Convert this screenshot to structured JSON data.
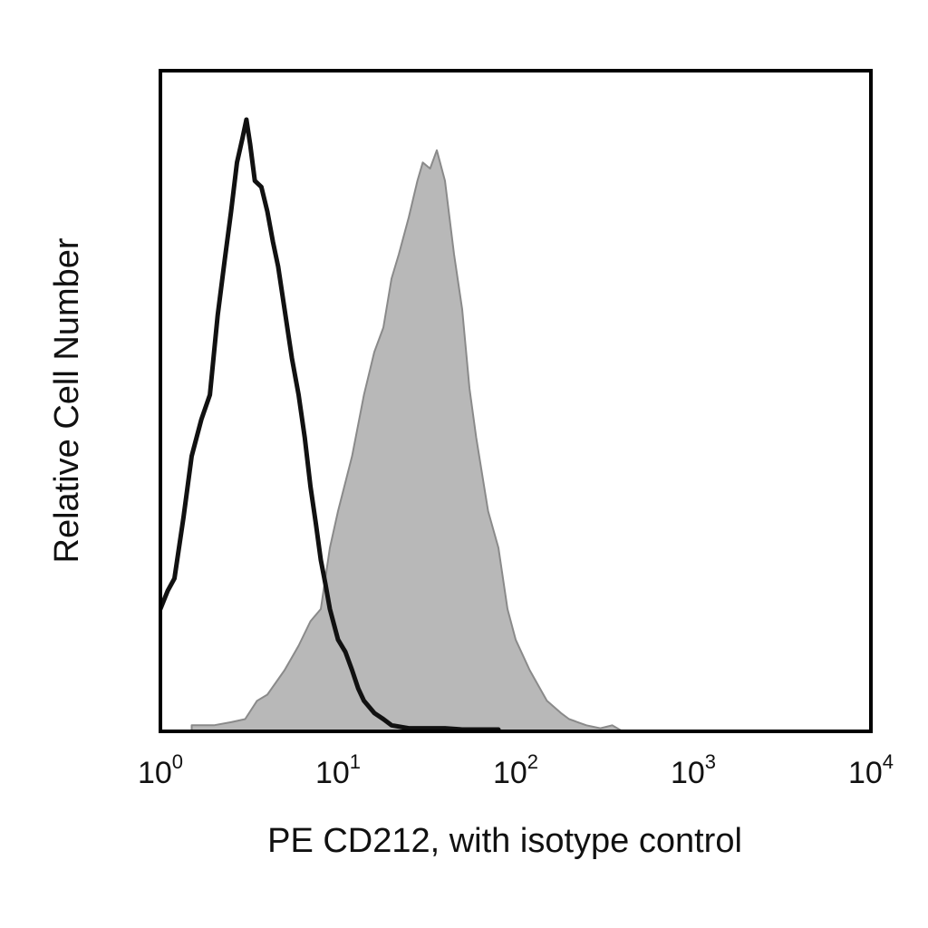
{
  "chart_data": {
    "type": "area",
    "xlabel": "PE CD212, with isotype control",
    "ylabel": "Relative Cell Number",
    "xscale": "log",
    "xlim": [
      1,
      10000
    ],
    "ylim": [
      0,
      1.08
    ],
    "grid": false,
    "legend": "none",
    "x_ticks": [
      {
        "base": "10",
        "exp": "0",
        "value": 1
      },
      {
        "base": "10",
        "exp": "1",
        "value": 10
      },
      {
        "base": "10",
        "exp": "2",
        "value": 100
      },
      {
        "base": "10",
        "exp": "3",
        "value": 1000
      },
      {
        "base": "10",
        "exp": "4",
        "value": 10000
      }
    ],
    "series": [
      {
        "style": "filled",
        "color": "#b8b8b8",
        "edge_color": "#8a8a8a",
        "x": [
          1.5,
          2.0,
          2.5,
          3.0,
          3.5,
          4.0,
          5.0,
          6.0,
          7.0,
          8.0,
          9.0,
          10,
          12,
          14,
          16,
          18,
          20,
          22,
          25,
          28,
          30,
          33,
          36,
          40,
          45,
          50,
          55,
          60,
          70,
          80,
          90,
          100,
          120,
          150,
          180,
          200,
          250,
          300,
          350,
          400
        ],
        "y": [
          0.01,
          0.01,
          0.015,
          0.02,
          0.05,
          0.06,
          0.1,
          0.14,
          0.18,
          0.2,
          0.3,
          0.36,
          0.45,
          0.55,
          0.62,
          0.66,
          0.74,
          0.78,
          0.84,
          0.9,
          0.93,
          0.92,
          0.95,
          0.9,
          0.78,
          0.69,
          0.56,
          0.48,
          0.36,
          0.3,
          0.2,
          0.15,
          0.1,
          0.05,
          0.03,
          0.02,
          0.01,
          0.005,
          0.01,
          0.0
        ]
      },
      {
        "style": "outline",
        "color": "#111111",
        "x": [
          1.0,
          1.1,
          1.2,
          1.35,
          1.5,
          1.7,
          1.9,
          2.1,
          2.3,
          2.5,
          2.7,
          2.9,
          3.05,
          3.2,
          3.4,
          3.7,
          4.0,
          4.3,
          4.6,
          5.0,
          5.5,
          6.0,
          6.5,
          7.0,
          7.5,
          8.0,
          8.5,
          9.0,
          10,
          11,
          12,
          13,
          14,
          16,
          18,
          20,
          25,
          30,
          40,
          50,
          60,
          70,
          80
        ],
        "y": [
          0.2,
          0.23,
          0.25,
          0.35,
          0.45,
          0.51,
          0.55,
          0.68,
          0.77,
          0.85,
          0.93,
          0.97,
          1.0,
          0.96,
          0.9,
          0.89,
          0.85,
          0.8,
          0.76,
          0.69,
          0.61,
          0.55,
          0.48,
          0.4,
          0.34,
          0.28,
          0.24,
          0.2,
          0.15,
          0.13,
          0.1,
          0.07,
          0.05,
          0.03,
          0.02,
          0.01,
          0.005,
          0.005,
          0.005,
          0.003,
          0.003,
          0.003,
          0.003
        ]
      }
    ]
  }
}
